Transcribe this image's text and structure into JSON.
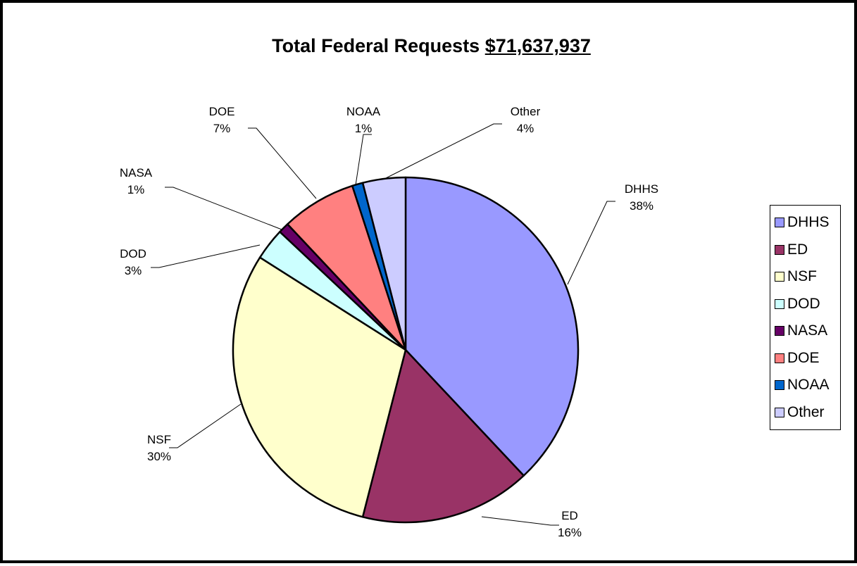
{
  "title": {
    "text": "Total Federal Requests",
    "amount": "$71,637,937"
  },
  "chart_data": {
    "type": "pie",
    "title": "Total Federal Requests $71,637,937",
    "legend_position": "right",
    "categories": [
      "DHHS",
      "ED",
      "NSF",
      "DOD",
      "NASA",
      "DOE",
      "NOAA",
      "Other"
    ],
    "values": [
      38,
      16,
      30,
      3,
      1,
      7,
      1,
      4
    ],
    "labels": [
      "38%",
      "16%",
      "30%",
      "3%",
      "1%",
      "7%",
      "1%",
      "4%"
    ],
    "colors": [
      "#9999ff",
      "#993366",
      "#ffffcc",
      "#ccffff",
      "#660066",
      "#ff8080",
      "#0066cc",
      "#ccccff"
    ]
  }
}
